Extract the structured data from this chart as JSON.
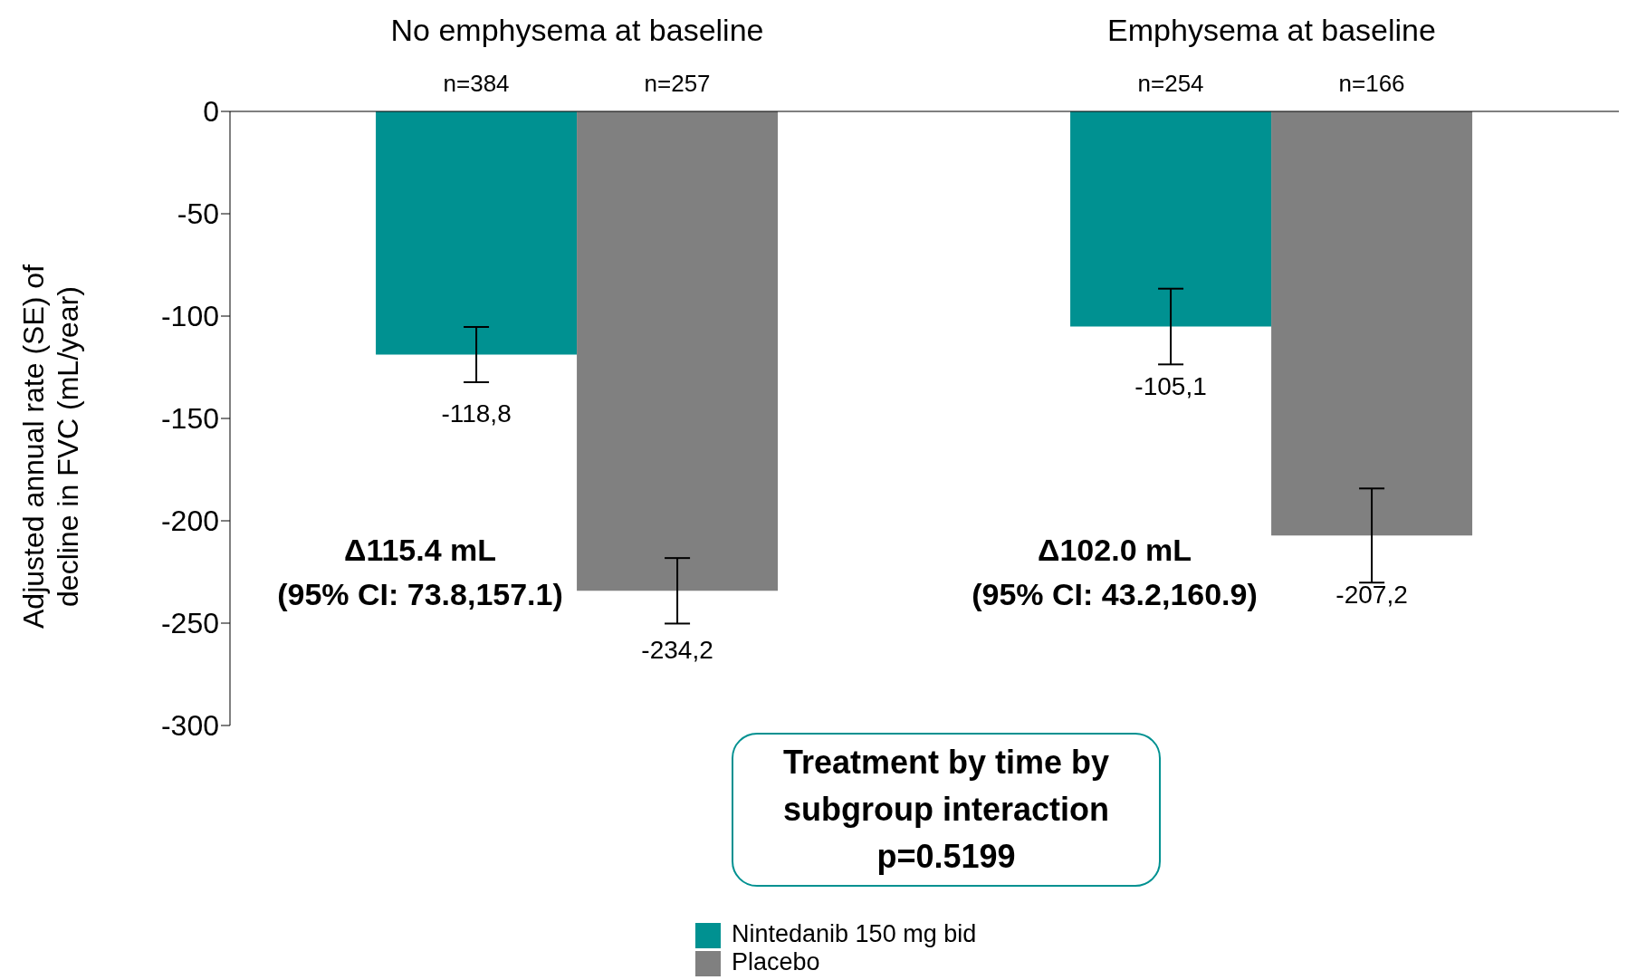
{
  "chart_data": {
    "type": "bar",
    "ylabel": "Adjusted annual rate (SE) of decline in FVC (mL/year)",
    "categories": [
      "No emphysema at baseline",
      "Emphysema at baseline"
    ],
    "series": [
      {
        "name": "Nintedanib 150 mg bid",
        "color": "#009191",
        "values": [
          -118.8,
          -105.1
        ],
        "errors": [
          13.5,
          18.5
        ],
        "value_labels": [
          "-118,8",
          "-105,1"
        ]
      },
      {
        "name": "Placebo",
        "color": "#808080",
        "values": [
          -234.2,
          -207.2
        ],
        "errors": [
          16,
          23
        ],
        "value_labels": [
          "-234,2",
          "-207,2"
        ]
      }
    ],
    "ylim": [
      -300,
      0
    ],
    "yticks": [
      0,
      -50,
      -100,
      -150,
      -200,
      -250,
      -300
    ],
    "grid": false,
    "legend": "bottom",
    "annotations": [
      "n=384",
      "n=257",
      "n=254",
      "n=166",
      "Δ115.4 mL\n(95% CI: 73.8,157.1)",
      "Δ102.0 mL\n(95% CI: 43.2,160.9)",
      "Treatment by time by subgroup interaction p=0.5199"
    ]
  }
}
